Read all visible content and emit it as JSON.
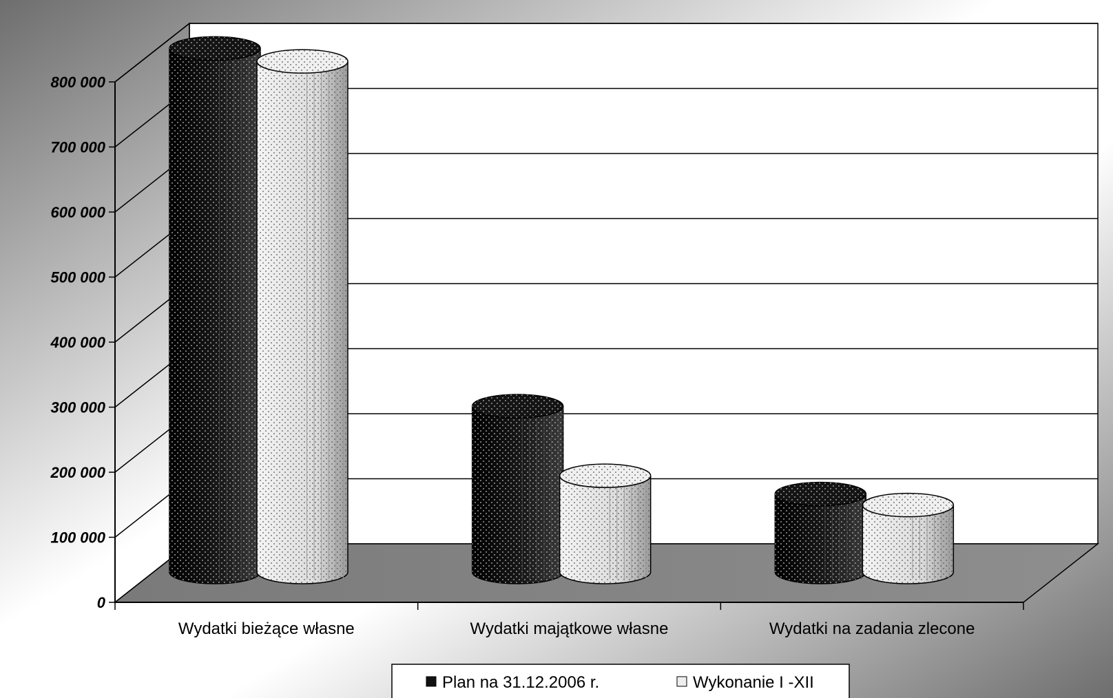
{
  "chart_data": {
    "type": "bar",
    "style": "3d-cylinder",
    "categories": [
      "Wydatki bieżące własne",
      "Wydatki majątkowe własne",
      "Wydatki na zadania zlecone"
    ],
    "series": [
      {
        "name": "Plan na 31.12.2006 r.",
        "color": "#111111",
        "values": [
          805000,
          255000,
          120000
        ]
      },
      {
        "name": "Wykonanie I -XII",
        "color": "#e6e6e6",
        "values": [
          785000,
          148000,
          103000
        ]
      }
    ],
    "ylim": [
      0,
      800000
    ],
    "yticks": [
      0,
      100000,
      200000,
      300000,
      400000,
      500000,
      600000,
      700000,
      800000
    ],
    "ytick_labels": [
      "0",
      "100 000",
      "200 000",
      "300 000",
      "400 000",
      "500 000",
      "600 000",
      "700 000",
      "800 000"
    ],
    "grid": true,
    "legend_position": "bottom-center",
    "title": "",
    "xlabel": "",
    "ylabel": ""
  }
}
